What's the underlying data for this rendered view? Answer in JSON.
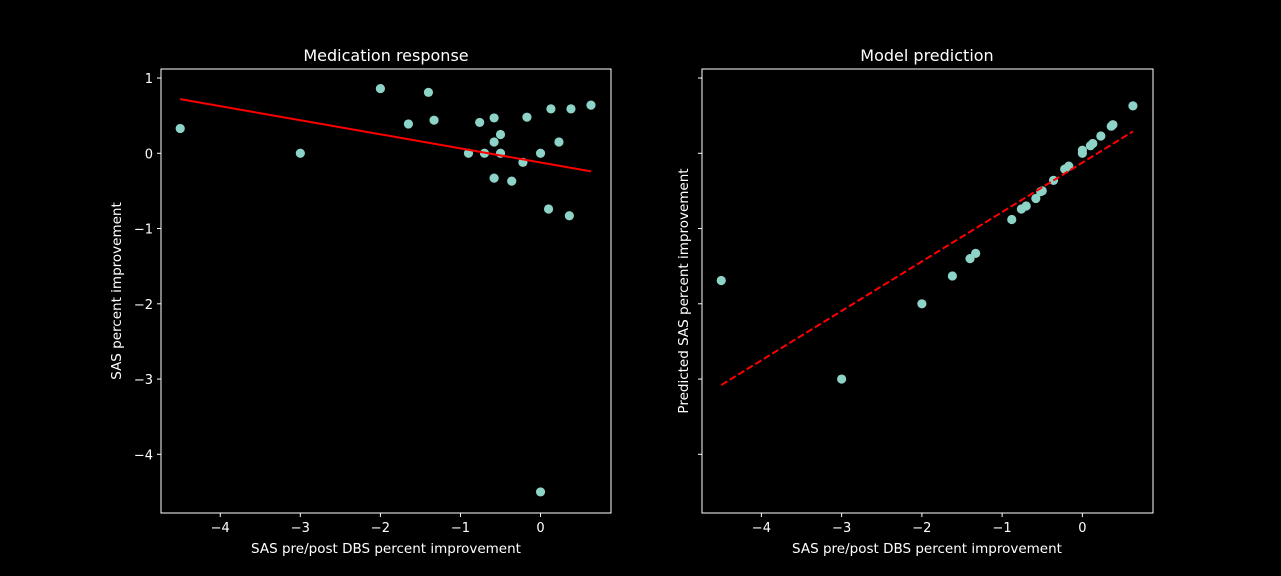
{
  "colors": {
    "background": "#000000",
    "foreground": "#ffffff",
    "points": "#8dd3c7",
    "fit_line": "#ff0000"
  },
  "chart_data": [
    {
      "type": "scatter",
      "title": "Medication response",
      "xlabel": "SAS pre/post DBS percent improvement",
      "ylabel": "SAS percent improvement",
      "xlim": [
        -4.74,
        0.88
      ],
      "ylim": [
        -4.78,
        1.12
      ],
      "xticks": [
        -4,
        -3,
        -2,
        -1,
        0
      ],
      "xtick_labels": [
        "−4",
        "−3",
        "−2",
        "−1",
        "0"
      ],
      "yticks": [
        1,
        0,
        -1,
        -2,
        -3,
        -4
      ],
      "ytick_labels": [
        "1",
        "0",
        "−1",
        "−2",
        "−3",
        "−4"
      ],
      "show_ytick_labels": true,
      "points": [
        {
          "x": -4.5,
          "y": 0.33
        },
        {
          "x": -3.0,
          "y": 0.0
        },
        {
          "x": -2.0,
          "y": 0.86
        },
        {
          "x": -1.65,
          "y": 0.39
        },
        {
          "x": -1.4,
          "y": 0.81
        },
        {
          "x": -1.33,
          "y": 0.44
        },
        {
          "x": -0.9,
          "y": 0.0
        },
        {
          "x": -0.76,
          "y": 0.41
        },
        {
          "x": -0.7,
          "y": 0.0
        },
        {
          "x": -0.58,
          "y": 0.47
        },
        {
          "x": -0.58,
          "y": 0.15
        },
        {
          "x": -0.58,
          "y": -0.33
        },
        {
          "x": -0.5,
          "y": 0.25
        },
        {
          "x": -0.5,
          "y": 0.0
        },
        {
          "x": -0.36,
          "y": -0.37
        },
        {
          "x": -0.22,
          "y": -0.12
        },
        {
          "x": -0.17,
          "y": 0.48
        },
        {
          "x": 0.0,
          "y": 0.0
        },
        {
          "x": 0.0,
          "y": -4.5
        },
        {
          "x": 0.1,
          "y": -0.74
        },
        {
          "x": 0.13,
          "y": 0.59
        },
        {
          "x": 0.23,
          "y": 0.15
        },
        {
          "x": 0.36,
          "y": -0.83
        },
        {
          "x": 0.38,
          "y": 0.59
        },
        {
          "x": 0.63,
          "y": 0.64
        }
      ],
      "fit_line": {
        "x": [
          -4.5,
          0.63
        ],
        "y": [
          0.72,
          -0.24
        ],
        "style": "solid"
      }
    },
    {
      "type": "scatter",
      "title": "Model prediction",
      "xlabel": "SAS pre/post DBS percent improvement",
      "ylabel": "Predicted SAS percent improvement",
      "xlim": [
        -4.74,
        0.88
      ],
      "ylim": [
        -4.78,
        1.12
      ],
      "xticks": [
        -4,
        -3,
        -2,
        -1,
        0
      ],
      "xtick_labels": [
        "−4",
        "−3",
        "−2",
        "−1",
        "0"
      ],
      "yticks": [
        1,
        0,
        -1,
        -2,
        -3,
        -4
      ],
      "ytick_labels": [
        "1",
        "0",
        "−1",
        "−2",
        "−3",
        "−4"
      ],
      "show_ytick_labels": false,
      "points": [
        {
          "x": -4.5,
          "y": -1.69
        },
        {
          "x": -3.0,
          "y": -3.0
        },
        {
          "x": -2.0,
          "y": -2.0
        },
        {
          "x": -1.62,
          "y": -1.63
        },
        {
          "x": -1.4,
          "y": -1.4
        },
        {
          "x": -1.33,
          "y": -1.33
        },
        {
          "x": -0.88,
          "y": -0.88
        },
        {
          "x": -0.76,
          "y": -0.74
        },
        {
          "x": -0.7,
          "y": -0.7
        },
        {
          "x": -0.58,
          "y": -0.6
        },
        {
          "x": -0.52,
          "y": -0.51
        },
        {
          "x": -0.5,
          "y": -0.5
        },
        {
          "x": -0.36,
          "y": -0.36
        },
        {
          "x": -0.22,
          "y": -0.21
        },
        {
          "x": -0.17,
          "y": -0.17
        },
        {
          "x": 0.0,
          "y": 0.0
        },
        {
          "x": 0.0,
          "y": 0.04
        },
        {
          "x": 0.1,
          "y": 0.1
        },
        {
          "x": 0.13,
          "y": 0.13
        },
        {
          "x": 0.23,
          "y": 0.23
        },
        {
          "x": 0.36,
          "y": 0.36
        },
        {
          "x": 0.38,
          "y": 0.38
        },
        {
          "x": 0.63,
          "y": 0.63
        }
      ],
      "fit_line": {
        "x": [
          -4.5,
          0.63
        ],
        "y": [
          -3.08,
          0.29
        ],
        "style": "dashed"
      }
    }
  ]
}
